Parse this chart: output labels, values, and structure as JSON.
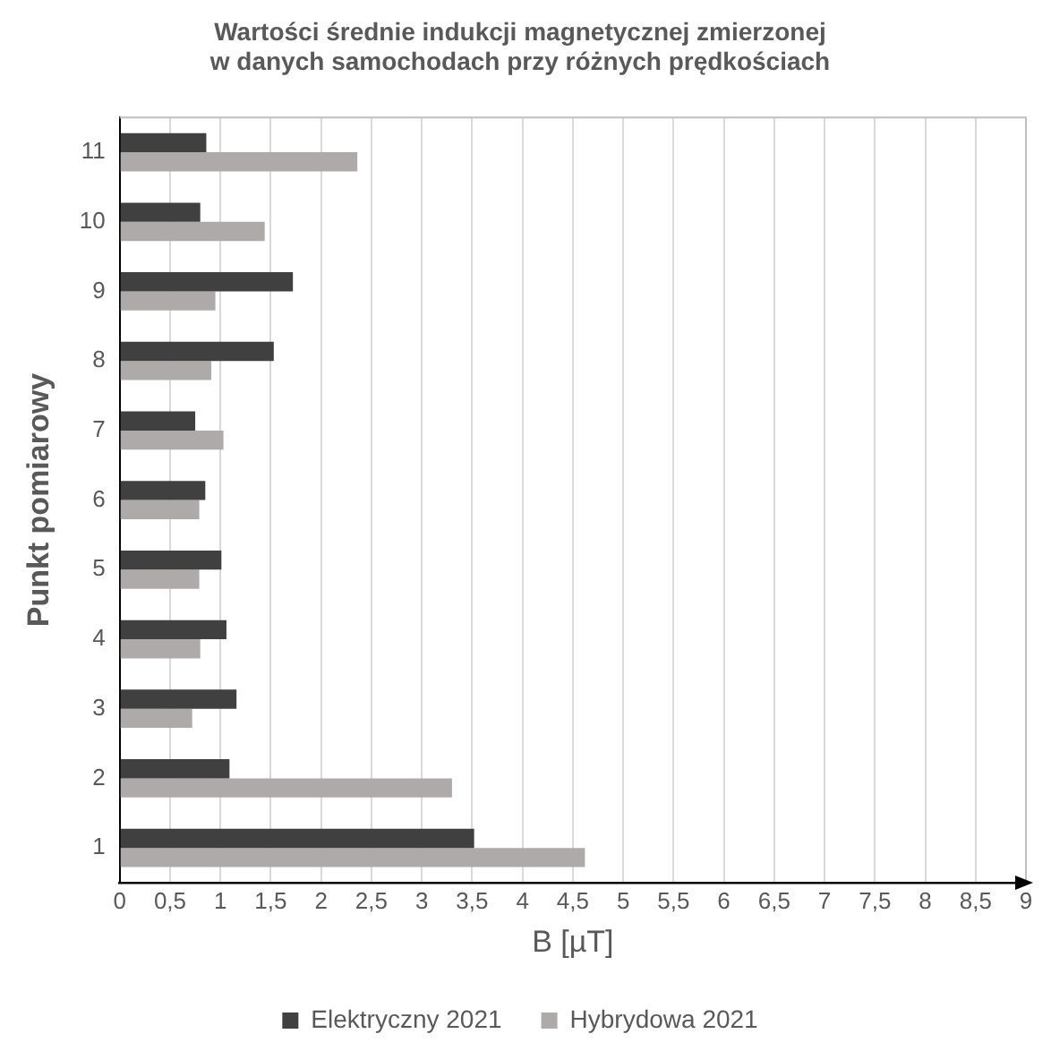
{
  "chart_data": {
    "type": "bar",
    "orientation": "horizontal",
    "title": [
      "Wartości średnie indukcji magnetycznej zmierzonej",
      "w danych samochodach przy różnych prędkościach"
    ],
    "xlabel": "B [µT]",
    "ylabel": "Punkt pomiarowy",
    "categories": [
      "11",
      "10",
      "9",
      "8",
      "7",
      "6",
      "5",
      "4",
      "3",
      "2",
      "1"
    ],
    "series": [
      {
        "name": "Elektryczny 2021",
        "color": "#404040",
        "values": [
          0.86,
          0.8,
          1.72,
          1.53,
          0.75,
          0.85,
          1.01,
          1.06,
          1.16,
          1.09,
          3.52
        ]
      },
      {
        "name": "Hybrydowa 2021",
        "color": "#aeaaaa",
        "values": [
          2.36,
          1.44,
          0.95,
          0.91,
          1.03,
          0.79,
          0.79,
          0.8,
          0.72,
          3.3,
          4.62
        ]
      }
    ],
    "xlim": [
      0,
      9
    ],
    "xticks": [
      0,
      {
        "value": 0.5,
        "label": "0,5"
      },
      1,
      {
        "value": 1.5,
        "label": "1,5"
      },
      2,
      {
        "value": 2.5,
        "label": "2,5"
      },
      3,
      {
        "value": 3.5,
        "label": "3,5"
      },
      4,
      {
        "value": 4.5,
        "label": "4,5"
      },
      5,
      {
        "value": 5.5,
        "label": "5,5"
      },
      6,
      {
        "value": 6.5,
        "label": "6,5"
      },
      7,
      {
        "value": 7.5,
        "label": "7,5"
      },
      8,
      {
        "value": 8.5,
        "label": "8,5"
      },
      9
    ],
    "grid": "x",
    "legend": "bottom"
  }
}
